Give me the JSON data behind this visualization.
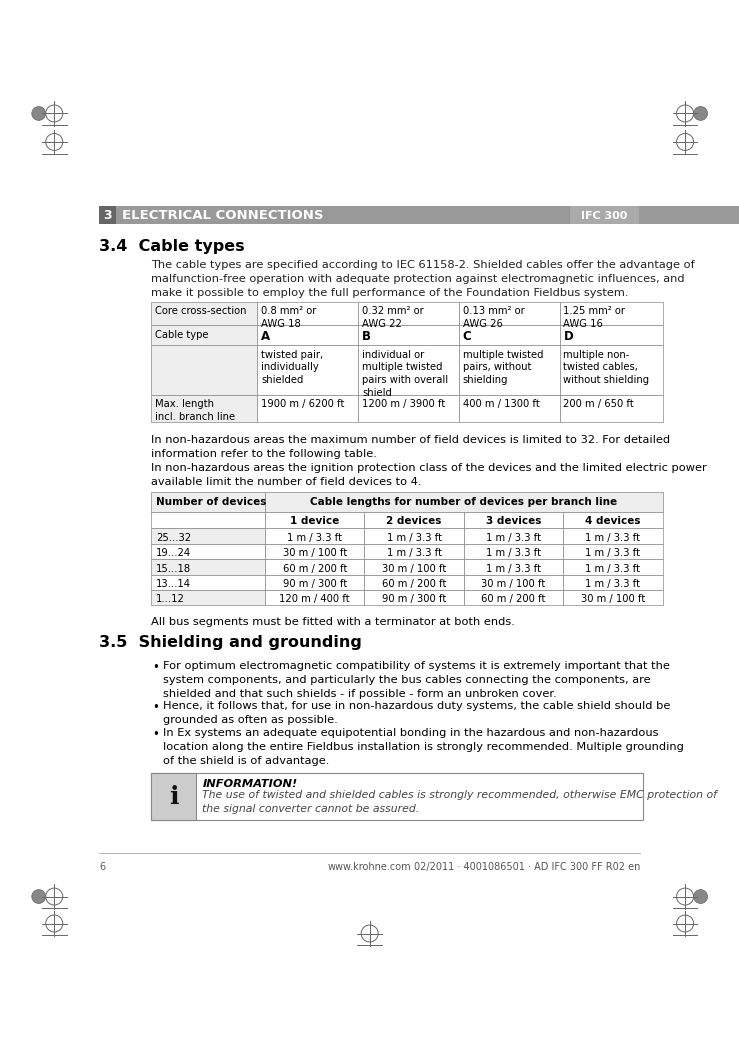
{
  "page_bg": "#ffffff",
  "header_section_num": "3",
  "header_title": "ELECTRICAL CONNECTIONS",
  "header_right": "IFC 300",
  "section_34_title": "3.4  Cable types",
  "section_34_intro": "The cable types are specified according to IEC 61158-2. Shielded cables offer the advantage of\nmalfunction-free operation with adequate protection against electromagnetic influences, and\nmake it possible to employ the full performance of the Foundation Fieldbus system.",
  "table1_headers": [
    "Core cross-section",
    "0.8 mm² or\nAWG 18",
    "0.32 mm² or\nAWG 22",
    "0.13 mm² or\nAWG 26",
    "1.25 mm² or\nAWG 16"
  ],
  "table1_row1_label": "Cable type",
  "table1_row1_values": [
    "A",
    "B",
    "C",
    "D"
  ],
  "table1_row2_values": [
    "twisted pair,\nindividually\nshielded",
    "individual or\nmultiple twisted\npairs with overall\nshield",
    "multiple twisted\npairs, without\nshielding",
    "multiple non-\ntwisted cables,\nwithout shielding"
  ],
  "table1_row3_label": "Max. length\nincl. branch line",
  "table1_row3_values": [
    "1900 m / 6200 ft",
    "1200 m / 3900 ft",
    "400 m / 1300 ft",
    "200 m / 650 ft"
  ],
  "text_nonhaz1": "In non-hazardous areas the maximum number of field devices is limited to 32. For detailed\ninformation refer to the following table.",
  "text_nonhaz2": "In non-hazardous areas the ignition protection class of the devices and the limited electric power\navailable limit the number of field devices to 4.",
  "table2_header1": "Number of devices",
  "table2_header2": "Cable lengths for number of devices per branch line",
  "table2_subheaders": [
    "1 device",
    "2 devices",
    "3 devices",
    "4 devices"
  ],
  "table2_rows": [
    [
      "25...32",
      "1 m / 3.3 ft",
      "1 m / 3.3 ft",
      "1 m / 3.3 ft",
      "1 m / 3.3 ft"
    ],
    [
      "19...24",
      "30 m / 100 ft",
      "1 m / 3.3 ft",
      "1 m / 3.3 ft",
      "1 m / 3.3 ft"
    ],
    [
      "15...18",
      "60 m / 200 ft",
      "30 m / 100 ft",
      "1 m / 3.3 ft",
      "1 m / 3.3 ft"
    ],
    [
      "13...14",
      "90 m / 300 ft",
      "60 m / 200 ft",
      "30 m / 100 ft",
      "1 m / 3.3 ft"
    ],
    [
      "1...12",
      "120 m / 400 ft",
      "90 m / 300 ft",
      "60 m / 200 ft",
      "30 m / 100 ft"
    ]
  ],
  "text_bus": "All bus segments must be fitted with a terminator at both ends.",
  "section_35_title": "3.5  Shielding and grounding",
  "bullet1": "For optimum electromagnetic compatibility of systems it is extremely important that the\nsystem components, and particularly the bus cables connecting the components, are\nshielded and that such shields - if possible - form an unbroken cover.",
  "bullet2": "Hence, it follows that, for use in non-hazardous duty systems, the cable shield should be\ngrounded as often as possible.",
  "bullet3": "In Ex systems an adequate equipotential bonding in the hazardous and non-hazardous\nlocation along the entire Fieldbus installation is strongly recommended. Multiple grounding\nof the shield is of advantage.",
  "info_title": "INFORMATION!",
  "info_text": "The use of twisted and shielded cables is strongly recommended, otherwise EMC protection of\nthe signal converter cannot be assured.",
  "footer_page": "6",
  "footer_url": "www.krohne.com",
  "footer_doc": "02/2011 · 4001086501 · AD IFC 300 FF R02 en",
  "table_border_color": "#888888",
  "table_alt_row_bg": "#eeeeee",
  "header_bar_dark": "#666666",
  "header_bar_mid": "#999999",
  "header_badge_bg": "#aaaaaa",
  "reg_mark_color": "#666666",
  "reg_circle_fill": "#888888"
}
